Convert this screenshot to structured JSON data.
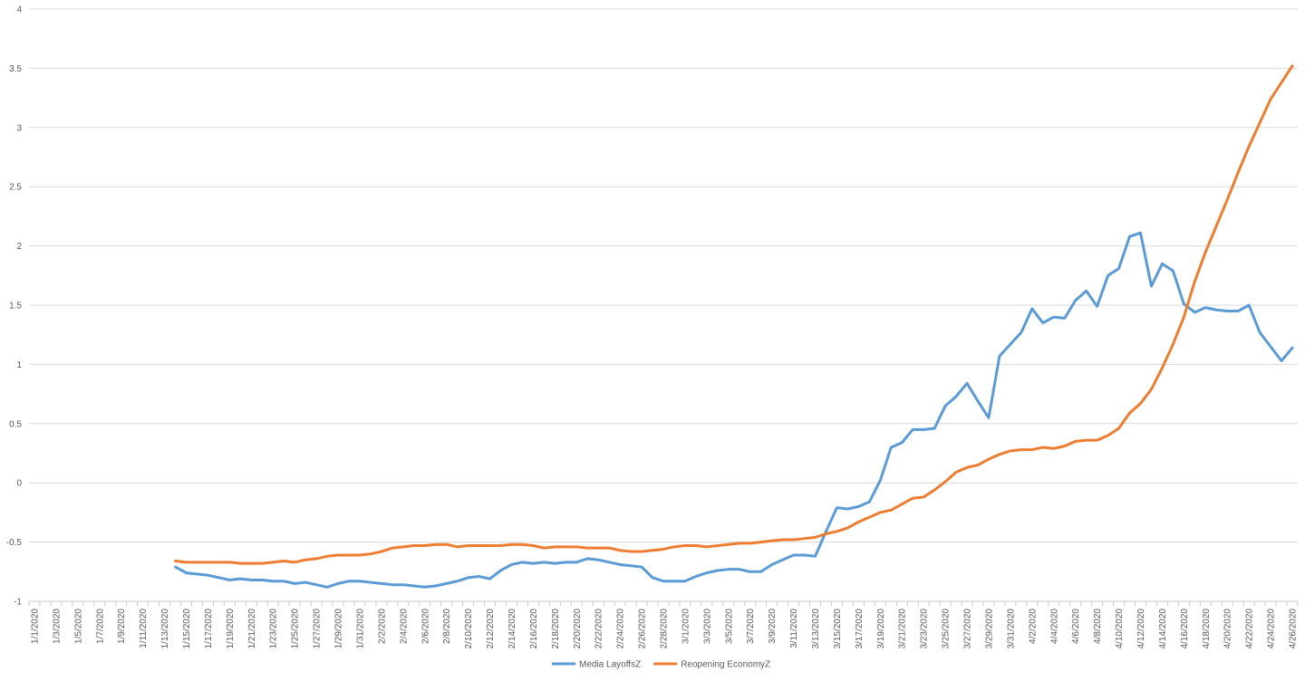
{
  "chart_data": {
    "type": "line",
    "title": "",
    "xlabel": "",
    "ylabel": "",
    "ylim": [
      -1,
      4
    ],
    "yticks": [
      -1,
      -0.5,
      0,
      0.5,
      1,
      1.5,
      2,
      2.5,
      3,
      3.5,
      4
    ],
    "ytick_labels": [
      "-1",
      "-0.5",
      "0",
      "0.5",
      "1",
      "1.5",
      "2",
      "2.5",
      "3",
      "3.5",
      "4"
    ],
    "grid": true,
    "legend_position": "bottom",
    "x_start": "1/1/2020",
    "x_tick_labels": [
      "1/1/2020",
      "1/3/2020",
      "1/5/2020",
      "1/7/2020",
      "1/9/2020",
      "1/11/2020",
      "1/13/2020",
      "1/15/2020",
      "1/17/2020",
      "1/19/2020",
      "1/21/2020",
      "1/23/2020",
      "1/25/2020",
      "1/27/2020",
      "1/29/2020",
      "1/31/2020",
      "2/2/2020",
      "2/4/2020",
      "2/6/2020",
      "2/8/2020",
      "2/10/2020",
      "2/12/2020",
      "2/14/2020",
      "2/16/2020",
      "2/18/2020",
      "2/20/2020",
      "2/22/2020",
      "2/24/2020",
      "2/26/2020",
      "2/28/2020",
      "3/1/2020",
      "3/3/2020",
      "3/5/2020",
      "3/7/2020",
      "3/9/2020",
      "3/11/2020",
      "3/13/2020",
      "3/15/2020",
      "3/17/2020",
      "3/19/2020",
      "3/21/2020",
      "3/23/2020",
      "3/25/2020",
      "3/27/2020",
      "3/29/2020",
      "3/31/2020",
      "4/2/2020",
      "4/4/2020",
      "4/6/2020",
      "4/8/2020",
      "4/10/2020",
      "4/12/2020",
      "4/14/2020",
      "4/16/2020",
      "4/18/2020",
      "4/20/2020",
      "4/22/2020",
      "4/24/2020",
      "4/26/2020"
    ],
    "series": [
      {
        "name": "Media LayoffsZ",
        "color": "#5B9BD5",
        "start_date": "1/14/2020",
        "values": [
          -0.71,
          -0.76,
          -0.77,
          -0.78,
          -0.8,
          -0.82,
          -0.81,
          -0.82,
          -0.82,
          -0.83,
          -0.83,
          -0.85,
          -0.84,
          -0.86,
          -0.88,
          -0.85,
          -0.83,
          -0.83,
          -0.84,
          -0.85,
          -0.86,
          -0.86,
          -0.87,
          -0.88,
          -0.87,
          -0.85,
          -0.83,
          -0.8,
          -0.79,
          -0.81,
          -0.74,
          -0.69,
          -0.67,
          -0.68,
          -0.67,
          -0.68,
          -0.67,
          -0.67,
          -0.64,
          -0.65,
          -0.67,
          -0.69,
          -0.7,
          -0.71,
          -0.8,
          -0.83,
          -0.83,
          -0.83,
          -0.79,
          -0.76,
          -0.74,
          -0.73,
          -0.73,
          -0.75,
          -0.75,
          -0.69,
          -0.65,
          -0.61,
          -0.61,
          -0.62,
          -0.41,
          -0.21,
          -0.22,
          -0.2,
          -0.16,
          0.02,
          0.3,
          0.34,
          0.45,
          0.45,
          0.46,
          0.65,
          0.73,
          0.84,
          0.69,
          0.55,
          1.07,
          1.17,
          1.27,
          1.47,
          1.35,
          1.4,
          1.39,
          1.54,
          1.62,
          1.49,
          1.75,
          1.81,
          2.08,
          2.11,
          1.66,
          1.85,
          1.79,
          1.51,
          1.44,
          1.48,
          1.46,
          1.45,
          1.45,
          1.5,
          1.27,
          1.15,
          1.03,
          1.14
        ]
      },
      {
        "name": "Reopening EconomyZ",
        "color": "#ED7D31",
        "start_date": "1/14/2020",
        "values": [
          -0.66,
          -0.67,
          -0.67,
          -0.67,
          -0.67,
          -0.67,
          -0.68,
          -0.68,
          -0.68,
          -0.67,
          -0.66,
          -0.67,
          -0.65,
          -0.64,
          -0.62,
          -0.61,
          -0.61,
          -0.61,
          -0.6,
          -0.58,
          -0.55,
          -0.54,
          -0.53,
          -0.53,
          -0.52,
          -0.52,
          -0.54,
          -0.53,
          -0.53,
          -0.53,
          -0.53,
          -0.52,
          -0.52,
          -0.53,
          -0.55,
          -0.54,
          -0.54,
          -0.54,
          -0.55,
          -0.55,
          -0.55,
          -0.57,
          -0.58,
          -0.58,
          -0.57,
          -0.56,
          -0.54,
          -0.53,
          -0.53,
          -0.54,
          -0.53,
          -0.52,
          -0.51,
          -0.51,
          -0.5,
          -0.49,
          -0.48,
          -0.48,
          -0.47,
          -0.46,
          -0.43,
          -0.41,
          -0.38,
          -0.33,
          -0.29,
          -0.25,
          -0.23,
          -0.18,
          -0.13,
          -0.12,
          -0.06,
          0.01,
          0.09,
          0.13,
          0.15,
          0.2,
          0.24,
          0.27,
          0.28,
          0.28,
          0.3,
          0.29,
          0.31,
          0.35,
          0.36,
          0.36,
          0.4,
          0.46,
          0.59,
          0.67,
          0.79,
          0.97,
          1.17,
          1.4,
          1.7,
          1.95,
          2.17,
          2.39,
          2.62,
          2.84,
          3.04,
          3.24,
          3.38,
          3.52
        ]
      }
    ]
  }
}
